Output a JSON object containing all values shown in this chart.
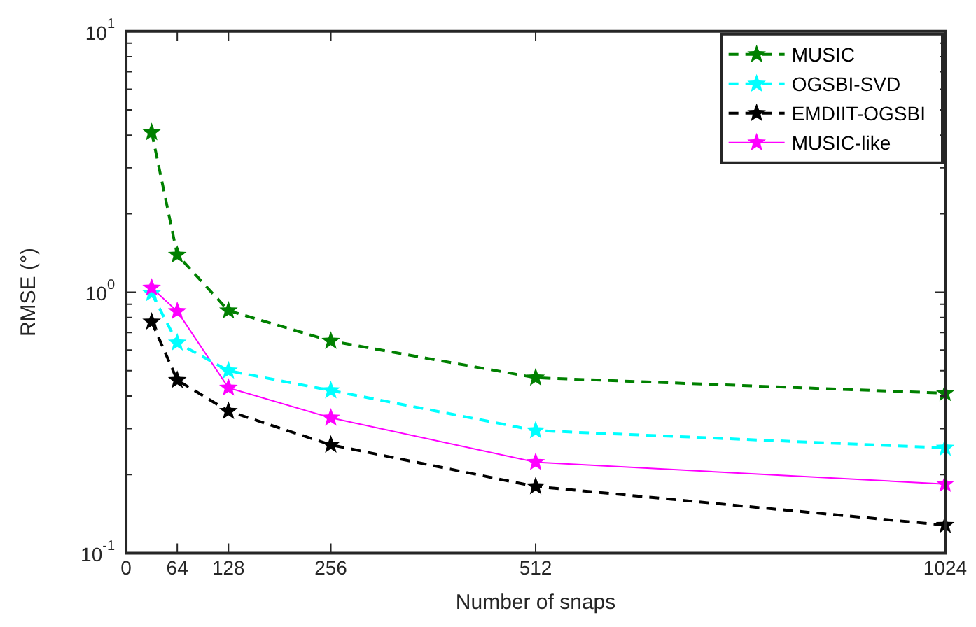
{
  "chart_data": {
    "type": "line",
    "xlabel": "Number of snaps",
    "ylabel": "RMSE (°)",
    "x": [
      32,
      64,
      128,
      256,
      512,
      1024
    ],
    "series": [
      {
        "name": "MUSIC",
        "color": "#008000",
        "line_style": "dashed",
        "values": [
          4.1,
          1.39,
          0.85,
          0.65,
          0.47,
          0.41
        ]
      },
      {
        "name": "OGSBI-SVD",
        "color": "#00ffff",
        "line_style": "dashed",
        "values": [
          0.99,
          0.64,
          0.5,
          0.42,
          0.295,
          0.253
        ]
      },
      {
        "name": "EMDIIT-OGSBI",
        "color": "#000000",
        "line_style": "dashed",
        "values": [
          0.77,
          0.46,
          0.35,
          0.26,
          0.18,
          0.128
        ]
      },
      {
        "name": "MUSIC-like",
        "color": "#ff00ff",
        "line_style": "solid",
        "values": [
          1.04,
          0.845,
          0.43,
          0.33,
          0.223,
          0.184
        ]
      }
    ],
    "xlim": [
      0,
      1024
    ],
    "xticks": [
      0,
      64,
      128,
      256,
      512,
      1024
    ],
    "ylim": [
      0.1,
      10
    ],
    "log": "y",
    "yticks": [
      {
        "value": 0.1,
        "label": "10$^{-1}$"
      },
      {
        "value": 0.2,
        "label": null
      },
      {
        "value": 0.3,
        "label": null
      },
      {
        "value": 0.4,
        "label": null
      },
      {
        "value": 0.5,
        "label": null
      },
      {
        "value": 0.6,
        "label": null
      },
      {
        "value": 0.7,
        "label": null
      },
      {
        "value": 0.8,
        "label": null
      },
      {
        "value": 0.9,
        "label": null
      },
      {
        "value": 1,
        "label": "10$^{0}$"
      },
      {
        "value": 2,
        "label": null
      },
      {
        "value": 3,
        "label": null
      },
      {
        "value": 4,
        "label": null
      },
      {
        "value": 5,
        "label": null
      },
      {
        "value": 6,
        "label": null
      },
      {
        "value": 7,
        "label": null
      },
      {
        "value": 8,
        "label": null
      },
      {
        "value": 9,
        "label": null
      },
      {
        "value": 10,
        "label": "10$^{1}$"
      }
    ],
    "grid": false,
    "legend": "top right",
    "marker": "star"
  }
}
